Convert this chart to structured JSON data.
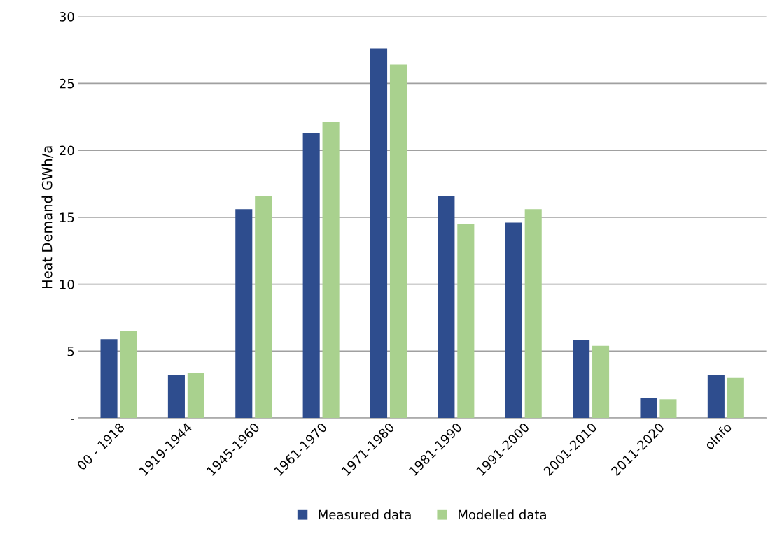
{
  "chart_data": {
    "type": "bar",
    "ylabel": "Heat Demand GWh/a",
    "categories": [
      "00 - 1918",
      "1919-1944",
      "1945-1960",
      "1961-1970",
      "1971-1980",
      "1981-1990",
      "1991-2000",
      "2001-2010",
      "2011-2020",
      "oInfo"
    ],
    "series": [
      {
        "name": "Measured data",
        "color": "#2e4d8e",
        "values": [
          5.9,
          3.2,
          15.6,
          21.3,
          27.6,
          16.6,
          14.6,
          5.8,
          1.5,
          3.2
        ]
      },
      {
        "name": "Modelled data",
        "color": "#a9d18e",
        "values": [
          6.5,
          3.35,
          16.6,
          22.1,
          26.4,
          14.5,
          15.6,
          5.4,
          1.4,
          3.0
        ]
      }
    ],
    "ylim": [
      0,
      30
    ],
    "yticks": [
      {
        "value": 0,
        "label": "-"
      },
      5,
      10,
      15,
      20,
      25,
      30
    ],
    "grid": "y",
    "legend": "bottom"
  }
}
